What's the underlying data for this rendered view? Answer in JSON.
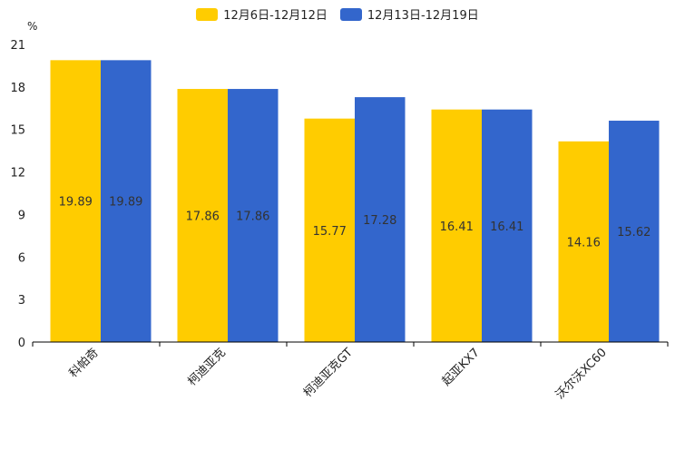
{
  "chart_data": {
    "type": "bar",
    "title": "",
    "ylabel": "%",
    "xlabel": "",
    "ylim": [
      0,
      21
    ],
    "yticks": [
      0,
      3,
      6,
      9,
      12,
      15,
      18,
      21
    ],
    "categories": [
      "科帕奇",
      "柯迪亚克",
      "柯迪亚克GT",
      "起亚KX7",
      "沃尔沃XC60"
    ],
    "series": [
      {
        "name": "12月6日-12月12日",
        "color": "#ffcc00",
        "values": [
          19.89,
          17.86,
          15.77,
          16.41,
          14.16
        ]
      },
      {
        "name": "12月13日-12月19日",
        "color": "#3366cc",
        "values": [
          19.89,
          17.86,
          17.28,
          16.41,
          15.62
        ]
      }
    ],
    "legend_position": "top-center"
  }
}
